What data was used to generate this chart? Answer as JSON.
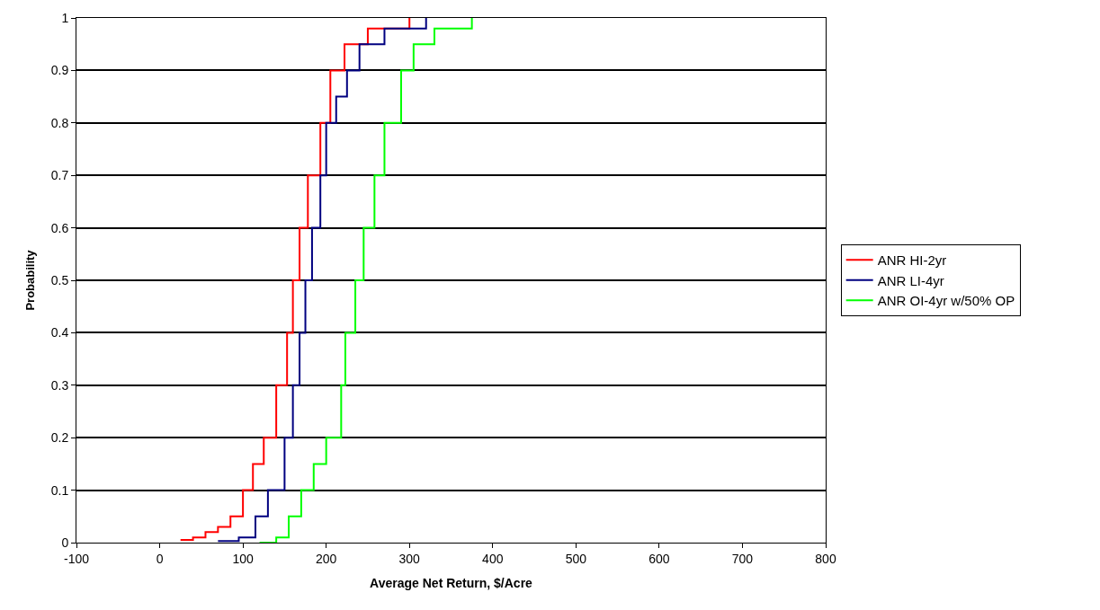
{
  "chart_data": {
    "type": "step",
    "xlabel": "Average Net Return, $/Acre",
    "ylabel": "Probability",
    "xlim": [
      -100,
      800
    ],
    "xticks": [
      -100,
      0,
      100,
      200,
      300,
      400,
      500,
      600,
      700,
      800
    ],
    "ylim": [
      0,
      1
    ],
    "yticks": [
      0,
      0.1,
      0.2,
      0.3,
      0.4,
      0.5,
      0.6,
      0.7,
      0.8,
      0.9,
      1
    ],
    "grid": "y",
    "legend": "right",
    "marker": "none",
    "line_style": "solid",
    "series": [
      {
        "name": "ANR HI-2yr",
        "color": "#ff0000",
        "x": [
          25,
          40,
          55,
          70,
          85,
          100,
          112,
          125,
          140,
          153,
          160,
          168,
          178,
          193,
          205,
          222,
          250,
          300
        ],
        "values": [
          0.005,
          0.01,
          0.02,
          0.03,
          0.05,
          0.1,
          0.15,
          0.2,
          0.3,
          0.4,
          0.5,
          0.6,
          0.7,
          0.8,
          0.9,
          0.95,
          0.98,
          1
        ]
      },
      {
        "name": "ANR LI-4yr",
        "color": "#000080",
        "x": [
          70,
          95,
          115,
          130,
          150,
          160,
          168,
          175,
          183,
          193,
          200,
          212,
          225,
          240,
          270,
          320
        ],
        "values": [
          0.003,
          0.01,
          0.05,
          0.1,
          0.2,
          0.3,
          0.4,
          0.5,
          0.6,
          0.7,
          0.8,
          0.85,
          0.9,
          0.95,
          0.98,
          1
        ]
      },
      {
        "name": "ANR OI-4yr w/50% OP",
        "color": "#00ff00",
        "x": [
          120,
          140,
          155,
          170,
          185,
          200,
          218,
          223,
          235,
          245,
          258,
          270,
          290,
          305,
          330,
          375
        ],
        "values": [
          0,
          0.01,
          0.05,
          0.1,
          0.15,
          0.2,
          0.3,
          0.4,
          0.5,
          0.6,
          0.7,
          0.8,
          0.9,
          0.95,
          0.98,
          1
        ]
      }
    ]
  }
}
